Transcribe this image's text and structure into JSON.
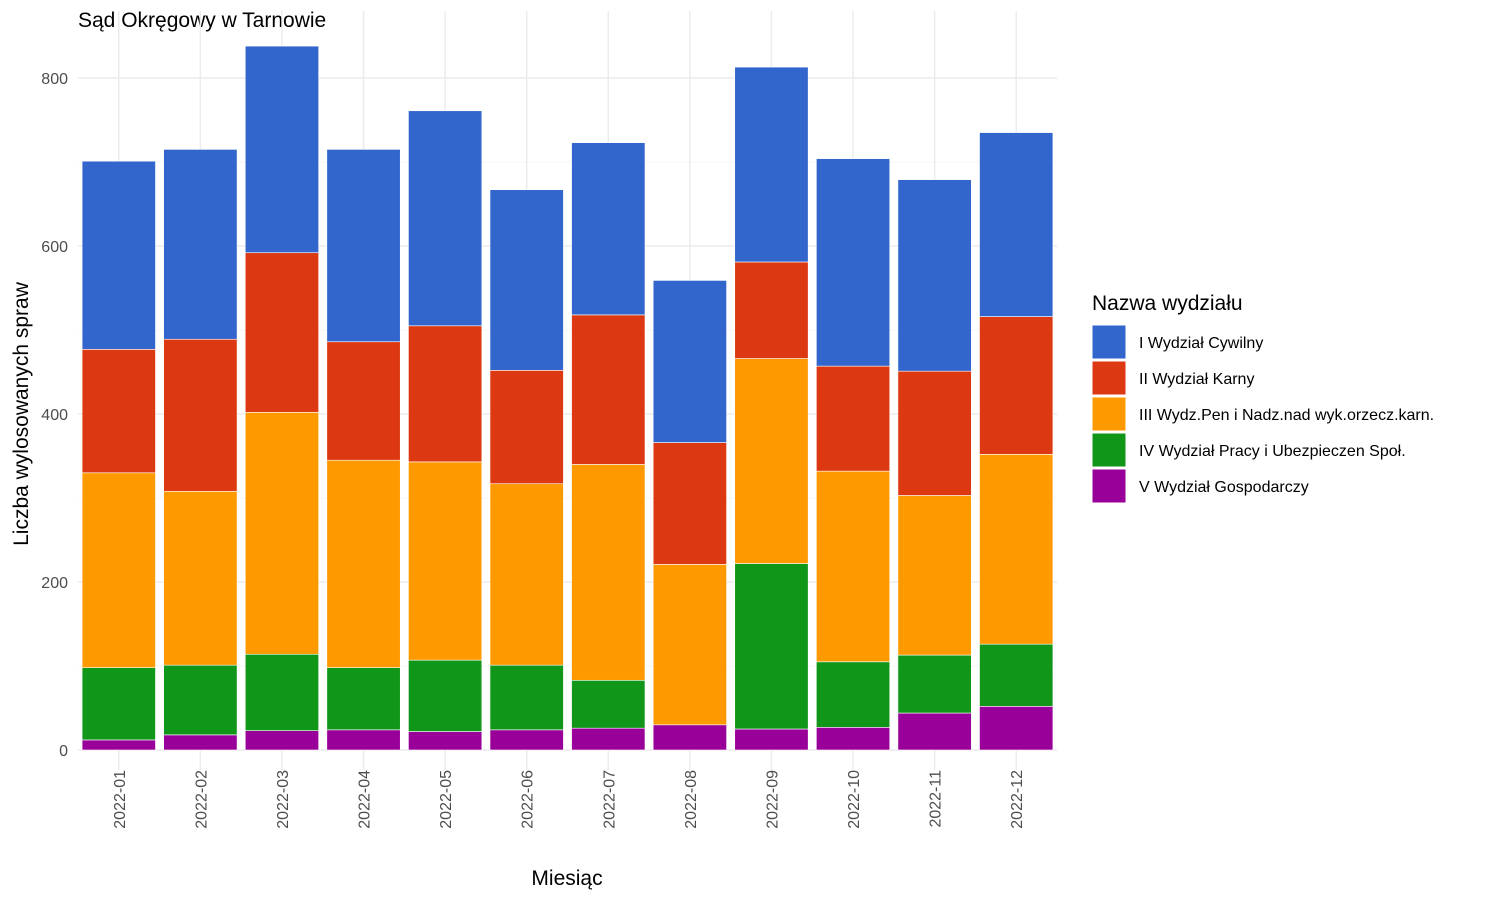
{
  "chart_data": {
    "type": "bar",
    "stacked": true,
    "title": "Sąd Okręgowy w Tarnowie",
    "xlabel": "Miesiąc",
    "ylabel": "Liczba wylosowanych spraw",
    "ylim": [
      0,
      840
    ],
    "yticks": [
      0,
      200,
      400,
      600,
      800
    ],
    "grid": true,
    "legend_title": "Nazwa wydziału",
    "legend_position": "right",
    "categories": [
      "2022-01",
      "2022-02",
      "2022-03",
      "2022-04",
      "2022-05",
      "2022-06",
      "2022-07",
      "2022-08",
      "2022-09",
      "2022-10",
      "2022-11",
      "2022-12"
    ],
    "series": [
      {
        "name": "I Wydział Cywilny",
        "color": "#3366cc",
        "values": [
          224,
          226,
          246,
          229,
          256,
          215,
          205,
          193,
          232,
          247,
          228,
          219
        ]
      },
      {
        "name": "II Wydział Karny",
        "color": "#dc3912",
        "values": [
          147,
          181,
          190,
          141,
          162,
          135,
          178,
          145,
          115,
          125,
          148,
          164
        ]
      },
      {
        "name": "III Wydz.Pen i Nadz.nad wyk.orzecz.karn.",
        "color": "#ff9900",
        "values": [
          232,
          207,
          288,
          247,
          236,
          216,
          257,
          191,
          244,
          227,
          190,
          226
        ]
      },
      {
        "name": "IV Wydział Pracy i Ubezpieczen Społ.",
        "color": "#109618",
        "values": [
          86,
          83,
          91,
          74,
          85,
          77,
          57,
          0,
          197,
          78,
          69,
          74
        ]
      },
      {
        "name": "V Wydział Gospodarczy",
        "color": "#990099",
        "values": [
          12,
          18,
          23,
          24,
          22,
          24,
          26,
          30,
          25,
          27,
          44,
          52
        ]
      }
    ]
  }
}
